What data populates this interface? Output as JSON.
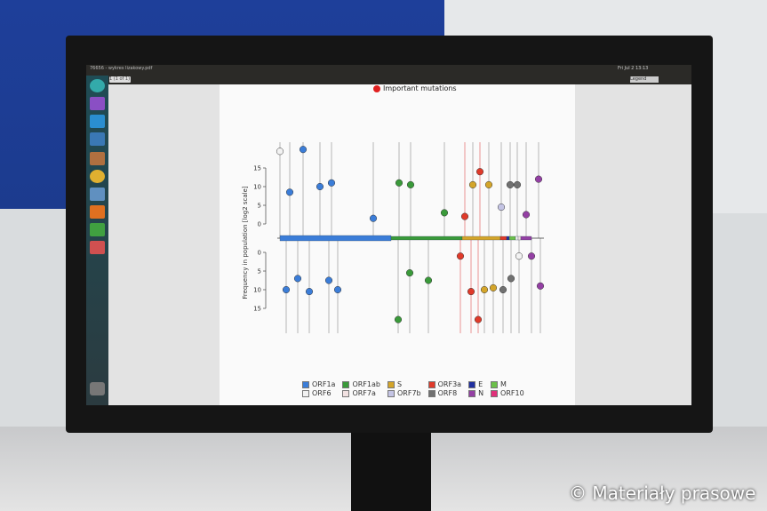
{
  "window": {
    "title": "76656 - wykres lizakowy.pdf",
    "page_indicator": "1 (1 of 1)",
    "zoom": "Legend",
    "clock": "Fri Jul 2 13:13"
  },
  "credit": "© Materiały prasowe",
  "chart_data": {
    "type": "lollipop",
    "title": "",
    "annotation": "Important mutations",
    "ylabel": "Frequency in population [log2 scale]",
    "yticks_top": [
      15,
      10,
      5,
      0
    ],
    "yticks_bottom": [
      0,
      5,
      10,
      15
    ],
    "ylim": [
      0,
      19
    ],
    "legend": [
      {
        "name": "ORF1a",
        "color": "#3b7dd8"
      },
      {
        "name": "ORF1ab",
        "color": "#3a9a3a"
      },
      {
        "name": "S",
        "color": "#d4a52a"
      },
      {
        "name": "ORF3a",
        "color": "#e03a2a"
      },
      {
        "name": "E",
        "color": "#1f2fa0"
      },
      {
        "name": "M",
        "color": "#6cc04a"
      },
      {
        "name": "ORF6",
        "color": "#f2f2f2"
      },
      {
        "name": "ORF7a",
        "color": "#f2e2e2"
      },
      {
        "name": "ORF7b",
        "color": "#c4c4e4"
      },
      {
        "name": "ORF8",
        "color": "#707070"
      },
      {
        "name": "N",
        "color": "#9440a4"
      },
      {
        "name": "ORF10",
        "color": "#e0307a"
      }
    ],
    "top": [
      {
        "gene": "ORF6",
        "value": 18.5
      },
      {
        "gene": "ORF1a",
        "value": 8.5
      },
      {
        "gene": "ORF1a",
        "value": 19
      },
      {
        "gene": "ORF1a",
        "value": 10
      },
      {
        "gene": "ORF1a",
        "value": 11
      },
      {
        "gene": "ORF1a",
        "value": 1.5
      },
      {
        "gene": "ORF1ab",
        "value": 11
      },
      {
        "gene": "ORF1ab",
        "value": 10.5
      },
      {
        "gene": "ORF1ab",
        "value": 3
      },
      {
        "gene": "ORF3a",
        "value": 2
      },
      {
        "gene": "S",
        "value": 10.5
      },
      {
        "gene": "ORF3a",
        "value": 14
      },
      {
        "gene": "S",
        "value": 10.5
      },
      {
        "gene": "ORF7b",
        "value": 4.5
      },
      {
        "gene": "ORF8",
        "value": 10.5
      },
      {
        "gene": "ORF8",
        "value": 10.5
      },
      {
        "gene": "N",
        "value": 2.5
      },
      {
        "gene": "N",
        "value": 12
      }
    ],
    "bottom": [
      {
        "gene": "ORF1a",
        "value": 10
      },
      {
        "gene": "ORF1a",
        "value": 7
      },
      {
        "gene": "ORF1a",
        "value": 10.5
      },
      {
        "gene": "ORF1a",
        "value": 7.5
      },
      {
        "gene": "ORF1a",
        "value": 10
      },
      {
        "gene": "ORF1ab",
        "value": 18
      },
      {
        "gene": "ORF1ab",
        "value": 5.5
      },
      {
        "gene": "ORF1ab",
        "value": 7.5
      },
      {
        "gene": "ORF3a",
        "value": 1
      },
      {
        "gene": "ORF3a",
        "value": 10.5
      },
      {
        "gene": "ORF3a",
        "value": 18
      },
      {
        "gene": "S",
        "value": 10
      },
      {
        "gene": "S",
        "value": 9.5
      },
      {
        "gene": "ORF8",
        "value": 10
      },
      {
        "gene": "ORF8",
        "value": 7
      },
      {
        "gene": "ORF6",
        "value": 1
      },
      {
        "gene": "N",
        "value": 1
      },
      {
        "gene": "N",
        "value": 9
      }
    ]
  }
}
